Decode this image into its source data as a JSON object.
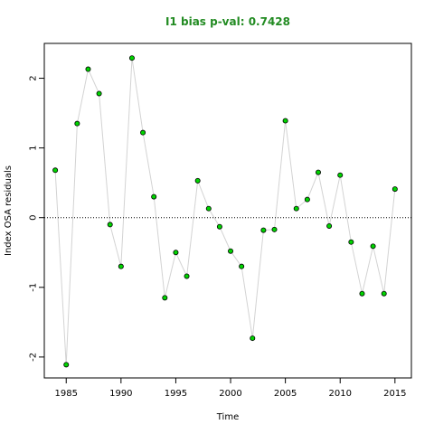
{
  "chart_data": {
    "type": "scatter",
    "title": "I1 bias p-val: 0.7428",
    "xlabel": "Time",
    "ylabel": "Index OSA residuals",
    "xlim": [
      1983,
      2016.5
    ],
    "ylim": [
      -2.3,
      2.5
    ],
    "xticks": [
      1985,
      1990,
      1995,
      2000,
      2005,
      2010,
      2015
    ],
    "yticks": [
      -2,
      -1,
      0,
      1,
      2
    ],
    "reference_line": 0,
    "series": [
      {
        "x": [
          1984,
          1985,
          1986,
          1987,
          1988,
          1989,
          1990,
          1991,
          1992,
          1993,
          1994,
          1995,
          1996,
          1997,
          1998,
          1999,
          2000,
          2001,
          2002,
          2003,
          2004,
          2005,
          2006,
          2007,
          2008,
          2009,
          2010,
          2011,
          2012,
          2013,
          2014,
          2015
        ],
        "y": [
          0.68,
          -2.11,
          1.35,
          2.13,
          1.78,
          -0.1,
          -0.7,
          2.29,
          1.22,
          0.3,
          -1.15,
          -0.5,
          -0.84,
          0.53,
          0.13,
          -0.13,
          -0.48,
          -0.7,
          -1.73,
          -0.18,
          -0.17,
          1.39,
          0.13,
          0.26,
          0.65,
          -0.12,
          0.61,
          -0.35,
          -1.09,
          -0.41,
          -1.09,
          0.41
        ]
      }
    ],
    "colors": {
      "title": "#228b22",
      "point_fill": "#00d400",
      "point_stroke": "#000000",
      "line": "#d3d3d3",
      "reference_line": "#000000",
      "axis": "#000000"
    }
  }
}
